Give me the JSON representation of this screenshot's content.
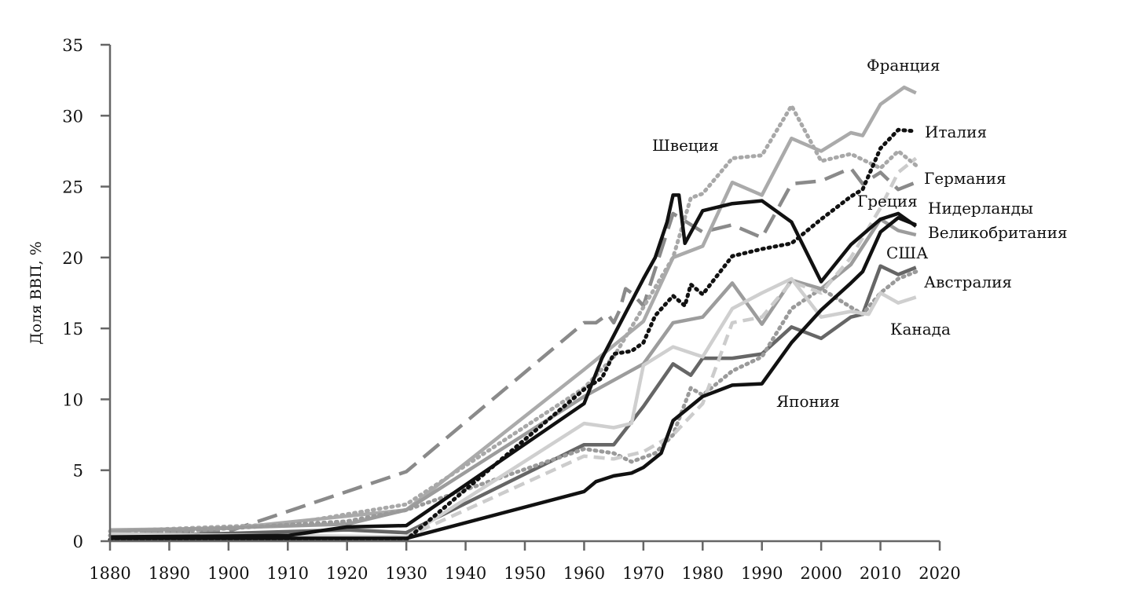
{
  "chart_data": {
    "type": "line",
    "title": "",
    "xlabel": "",
    "ylabel": "Доля ВВП, %",
    "xlim": [
      1880,
      2020
    ],
    "ylim": [
      0,
      35
    ],
    "xticks": [
      "1880",
      "1890",
      "1900",
      "1910",
      "1920",
      "1930",
      "1940",
      "1950",
      "1960",
      "1970",
      "1980",
      "1990",
      "2000",
      "2010",
      "2020"
    ],
    "yticks": [
      "0",
      "5",
      "10",
      "15",
      "20",
      "25",
      "30",
      "35"
    ],
    "grid": false,
    "series": [
      {
        "name": "Германия",
        "color": "#8a8a8a",
        "style": "longdash",
        "points": [
          [
            1880,
            0.5
          ],
          [
            1900,
            0.7
          ],
          [
            1930,
            4.9
          ],
          [
            1960,
            15.4
          ],
          [
            1962,
            15.4
          ],
          [
            1964,
            16
          ],
          [
            1965,
            15.4
          ],
          [
            1966,
            16.3
          ],
          [
            1967,
            17.8
          ],
          [
            1968,
            17.5
          ],
          [
            1970,
            16.6
          ],
          [
            1975,
            23.1
          ],
          [
            1980,
            21.8
          ],
          [
            1985,
            22.3
          ],
          [
            1990,
            21.4
          ],
          [
            1995,
            25.2
          ],
          [
            2000,
            25.4
          ],
          [
            2005,
            26.3
          ],
          [
            2007,
            25.2
          ],
          [
            2010,
            26
          ],
          [
            2013,
            24.8
          ],
          [
            2016,
            25.3
          ]
        ]
      },
      {
        "name": "Франция",
        "color": "#aaaaaa",
        "style": "solid",
        "points": [
          [
            1880,
            0.8
          ],
          [
            1900,
            0.9
          ],
          [
            1930,
            2.2
          ],
          [
            1960,
            12.1
          ],
          [
            1970,
            15.5
          ],
          [
            1975,
            20
          ],
          [
            1980,
            20.8
          ],
          [
            1985,
            25.3
          ],
          [
            1990,
            24.4
          ],
          [
            1995,
            28.4
          ],
          [
            2000,
            27.5
          ],
          [
            2005,
            28.8
          ],
          [
            2007,
            28.6
          ],
          [
            2010,
            30.8
          ],
          [
            2014,
            32
          ],
          [
            2016,
            31.6
          ]
        ]
      },
      {
        "name": "Швеция",
        "color": "#a8a8a8",
        "style": "dotted",
        "points": [
          [
            1880,
            0.7
          ],
          [
            1910,
            1.2
          ],
          [
            1930,
            2.6
          ],
          [
            1960,
            10.8
          ],
          [
            1965,
            13
          ],
          [
            1970,
            16.5
          ],
          [
            1975,
            20
          ],
          [
            1978,
            24.2
          ],
          [
            1980,
            24.5
          ],
          [
            1985,
            27
          ],
          [
            1990,
            27.2
          ],
          [
            1995,
            30.7
          ],
          [
            2000,
            26.8
          ],
          [
            2005,
            27.3
          ],
          [
            2010,
            26.3
          ],
          [
            2013,
            27.5
          ],
          [
            2016,
            26.5
          ]
        ]
      },
      {
        "name": "Великобритания",
        "color": "#9c9c9c",
        "style": "solid",
        "points": [
          [
            1880,
            0.7
          ],
          [
            1920,
            1.2
          ],
          [
            1930,
            2.2
          ],
          [
            1960,
            10.2
          ],
          [
            1970,
            12.5
          ],
          [
            1975,
            15.4
          ],
          [
            1980,
            15.8
          ],
          [
            1985,
            18.2
          ],
          [
            1990,
            15.3
          ],
          [
            1995,
            18.4
          ],
          [
            2000,
            17.8
          ],
          [
            2005,
            19.5
          ],
          [
            2010,
            22.7
          ],
          [
            2013,
            21.9
          ],
          [
            2016,
            21.6
          ]
        ]
      },
      {
        "name": "США",
        "color": "#666666",
        "style": "solid",
        "points": [
          [
            1880,
            0.3
          ],
          [
            1920,
            0.8
          ],
          [
            1930,
            0.6
          ],
          [
            1960,
            6.8
          ],
          [
            1965,
            6.8
          ],
          [
            1970,
            9.5
          ],
          [
            1975,
            12.5
          ],
          [
            1978,
            11.7
          ],
          [
            1980,
            12.9
          ],
          [
            1985,
            12.9
          ],
          [
            1990,
            13.2
          ],
          [
            1995,
            15.1
          ],
          [
            2000,
            14.3
          ],
          [
            2005,
            15.8
          ],
          [
            2007,
            16
          ],
          [
            2010,
            19.4
          ],
          [
            2013,
            18.8
          ],
          [
            2016,
            19.3
          ]
        ]
      },
      {
        "name": "Австралия",
        "color": "#9a9a9a",
        "style": "dotted",
        "points": [
          [
            1880,
            0.4
          ],
          [
            1920,
            1.4
          ],
          [
            1930,
            2.2
          ],
          [
            1960,
            6.5
          ],
          [
            1965,
            6.2
          ],
          [
            1968,
            5.6
          ],
          [
            1972,
            6.2
          ],
          [
            1975,
            7.5
          ],
          [
            1978,
            10.8
          ],
          [
            1980,
            10.3
          ],
          [
            1985,
            12
          ],
          [
            1990,
            13
          ],
          [
            1995,
            16.4
          ],
          [
            2000,
            17.8
          ],
          [
            2005,
            16.5
          ],
          [
            2007,
            16
          ],
          [
            2010,
            17.5
          ],
          [
            2013,
            18.5
          ],
          [
            2016,
            19
          ]
        ]
      },
      {
        "name": "Греция",
        "color": "#cccccc",
        "style": "dash",
        "points": [
          [
            1880,
            0.4
          ],
          [
            1930,
            0.3
          ],
          [
            1960,
            6
          ],
          [
            1965,
            5.8
          ],
          [
            1970,
            6.3
          ],
          [
            1975,
            7.5
          ],
          [
            1980,
            9.7
          ],
          [
            1985,
            15.4
          ],
          [
            1990,
            15.8
          ],
          [
            1995,
            18.3
          ],
          [
            2000,
            17.5
          ],
          [
            2005,
            20
          ],
          [
            2010,
            23.5
          ],
          [
            2013,
            26
          ],
          [
            2016,
            27
          ]
        ]
      },
      {
        "name": "Канада",
        "color": "#cfcfcf",
        "style": "solid",
        "points": [
          [
            1880,
            0.5
          ],
          [
            1930,
            0.3
          ],
          [
            1960,
            8.3
          ],
          [
            1965,
            8
          ],
          [
            1968,
            8.3
          ],
          [
            1970,
            12.4
          ],
          [
            1975,
            13.7
          ],
          [
            1980,
            13
          ],
          [
            1985,
            16.4
          ],
          [
            1990,
            17.5
          ],
          [
            1995,
            18.5
          ],
          [
            2000,
            15.8
          ],
          [
            2005,
            16.2
          ],
          [
            2008,
            16
          ],
          [
            2010,
            17.5
          ],
          [
            2013,
            16.8
          ],
          [
            2016,
            17.2
          ]
        ]
      },
      {
        "name": "Италия",
        "color": "#111111",
        "style": "dotted",
        "points": [
          [
            1880,
            0.1
          ],
          [
            1930,
            0.1
          ],
          [
            1960,
            10.7
          ],
          [
            1963,
            11.5
          ],
          [
            1965,
            13.2
          ],
          [
            1968,
            13.4
          ],
          [
            1970,
            14
          ],
          [
            1972,
            15.9
          ],
          [
            1975,
            17.3
          ],
          [
            1977,
            16.6
          ],
          [
            1978,
            18.1
          ],
          [
            1980,
            17.4
          ],
          [
            1985,
            20.1
          ],
          [
            1990,
            20.6
          ],
          [
            1995,
            21
          ],
          [
            2000,
            22.7
          ],
          [
            2005,
            24.3
          ],
          [
            2007,
            24.8
          ],
          [
            2010,
            27.7
          ],
          [
            2013,
            29
          ],
          [
            2016,
            28.9
          ]
        ]
      },
      {
        "name": "Нидерланды",
        "color": "#111111",
        "style": "solid",
        "points": [
          [
            1880,
            0.3
          ],
          [
            1910,
            0.4
          ],
          [
            1920,
            1
          ],
          [
            1930,
            1.1
          ],
          [
            1960,
            9.7
          ],
          [
            1963,
            12.9
          ],
          [
            1966,
            15.3
          ],
          [
            1970,
            18.5
          ],
          [
            1972,
            20
          ],
          [
            1974,
            22.5
          ],
          [
            1975,
            24.4
          ],
          [
            1976,
            24.4
          ],
          [
            1977,
            21
          ],
          [
            1980,
            23.3
          ],
          [
            1985,
            23.8
          ],
          [
            1990,
            24
          ],
          [
            1995,
            22.5
          ],
          [
            2000,
            18.3
          ],
          [
            2005,
            20.9
          ],
          [
            2010,
            22.7
          ],
          [
            2013,
            23.1
          ],
          [
            2016,
            22.2
          ]
        ]
      },
      {
        "name": "Япония",
        "color": "#111111",
        "style": "solid",
        "points": [
          [
            1880,
            0.2
          ],
          [
            1930,
            0.2
          ],
          [
            1960,
            3.5
          ],
          [
            1962,
            4.2
          ],
          [
            1965,
            4.6
          ],
          [
            1968,
            4.8
          ],
          [
            1970,
            5.2
          ],
          [
            1973,
            6.2
          ],
          [
            1975,
            8.5
          ],
          [
            1980,
            10.2
          ],
          [
            1985,
            11
          ],
          [
            1990,
            11.1
          ],
          [
            1995,
            14
          ],
          [
            2000,
            16.3
          ],
          [
            2005,
            18.2
          ],
          [
            2007,
            19
          ],
          [
            2010,
            21.8
          ],
          [
            2013,
            22.8
          ],
          [
            2016,
            22.3
          ]
        ]
      }
    ],
    "labels": [
      "Франция",
      "Италия",
      "Швеция",
      "Германия",
      "Греция",
      "Нидерланды",
      "Великобритания",
      "США",
      "Австралия",
      "Канада",
      "Япония"
    ]
  }
}
